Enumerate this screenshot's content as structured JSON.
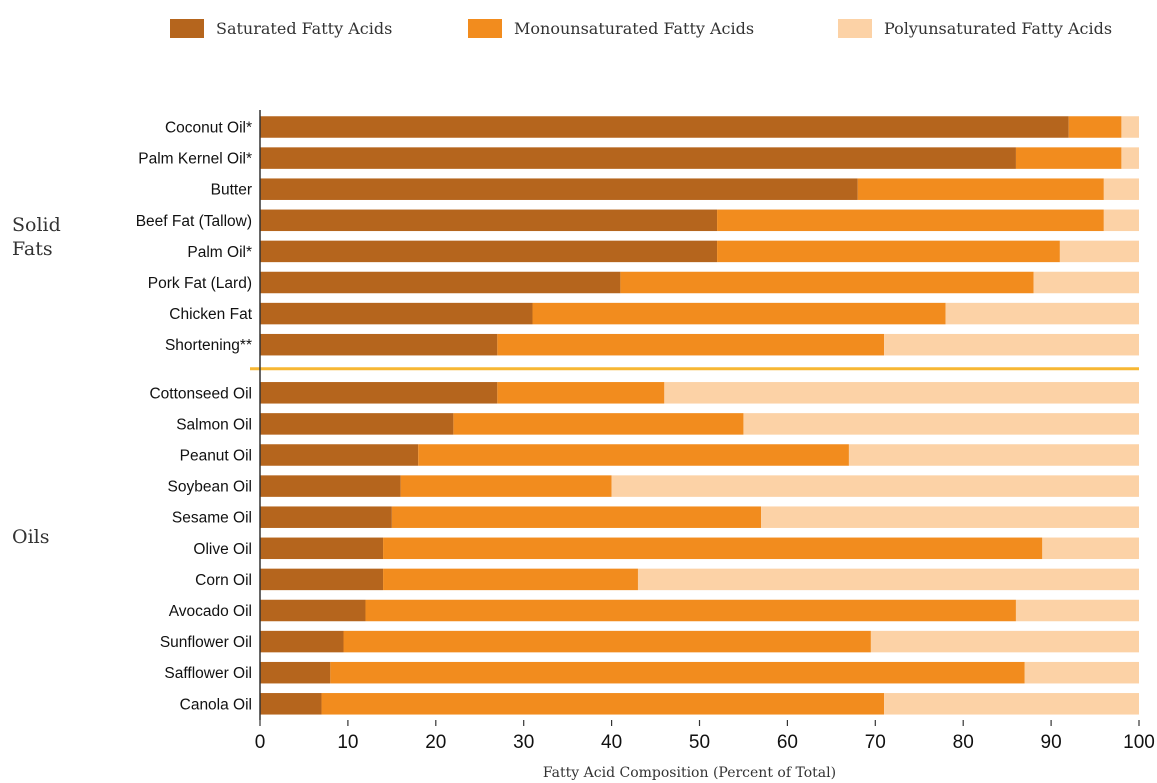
{
  "chart_data": {
    "type": "bar",
    "orientation": "horizontal",
    "stacked": true,
    "xlabel": "Fatty Acid Composition (Percent of Total)",
    "xlim": [
      0,
      100
    ],
    "xticks": [
      "0",
      "10",
      "20",
      "30",
      "40",
      "50",
      "60",
      "70",
      "80",
      "90",
      "100"
    ],
    "legend_position": "top",
    "grid": false,
    "colors": {
      "saturated": "#b5651d",
      "monounsaturated": "#f28c1e",
      "polyunsaturated": "#fcd2a6",
      "divider": "#f7b733",
      "axis": "#333333"
    },
    "series_names": [
      "Saturated Fatty Acids",
      "Monounsaturated Fatty Acids",
      "Polyunsaturated Fatty Acids"
    ],
    "groups": [
      {
        "label": [
          "Solid",
          "Fats"
        ],
        "items": [
          {
            "name": "Coconut Oil*",
            "values": [
              92,
              6,
              2
            ]
          },
          {
            "name": "Palm Kernel Oil*",
            "values": [
              86,
              12,
              2
            ]
          },
          {
            "name": "Butter",
            "values": [
              68,
              28,
              4
            ]
          },
          {
            "name": "Beef Fat (Tallow)",
            "values": [
              52,
              44,
              4
            ]
          },
          {
            "name": "Palm Oil*",
            "values": [
              52,
              39,
              9
            ]
          },
          {
            "name": "Pork Fat (Lard)",
            "values": [
              41,
              47,
              12
            ]
          },
          {
            "name": "Chicken Fat",
            "values": [
              31,
              47,
              22
            ]
          },
          {
            "name": "Shortening**",
            "values": [
              27,
              44,
              29
            ]
          }
        ]
      },
      {
        "label": [
          "Oils"
        ],
        "items": [
          {
            "name": "Cottonseed  Oil",
            "values": [
              27,
              19,
              54
            ]
          },
          {
            "name": "Salmon Oil",
            "values": [
              22,
              33,
              45
            ]
          },
          {
            "name": "Peanut Oil",
            "values": [
              18,
              49,
              33
            ]
          },
          {
            "name": "Soybean Oil",
            "values": [
              16,
              24,
              60
            ]
          },
          {
            "name": "Sesame Oil",
            "values": [
              15,
              42,
              43
            ]
          },
          {
            "name": "Olive Oil",
            "values": [
              14,
              75,
              11
            ]
          },
          {
            "name": "Corn Oil",
            "values": [
              14,
              29,
              57
            ]
          },
          {
            "name": "Avocado Oil",
            "values": [
              12,
              74,
              14
            ]
          },
          {
            "name": "Sunflower Oil",
            "values": [
              9.5,
              60,
              30.5
            ]
          },
          {
            "name": "Safflower Oil",
            "values": [
              8,
              79,
              13
            ]
          },
          {
            "name": "Canola Oil",
            "values": [
              7,
              64,
              29
            ]
          }
        ]
      }
    ]
  }
}
